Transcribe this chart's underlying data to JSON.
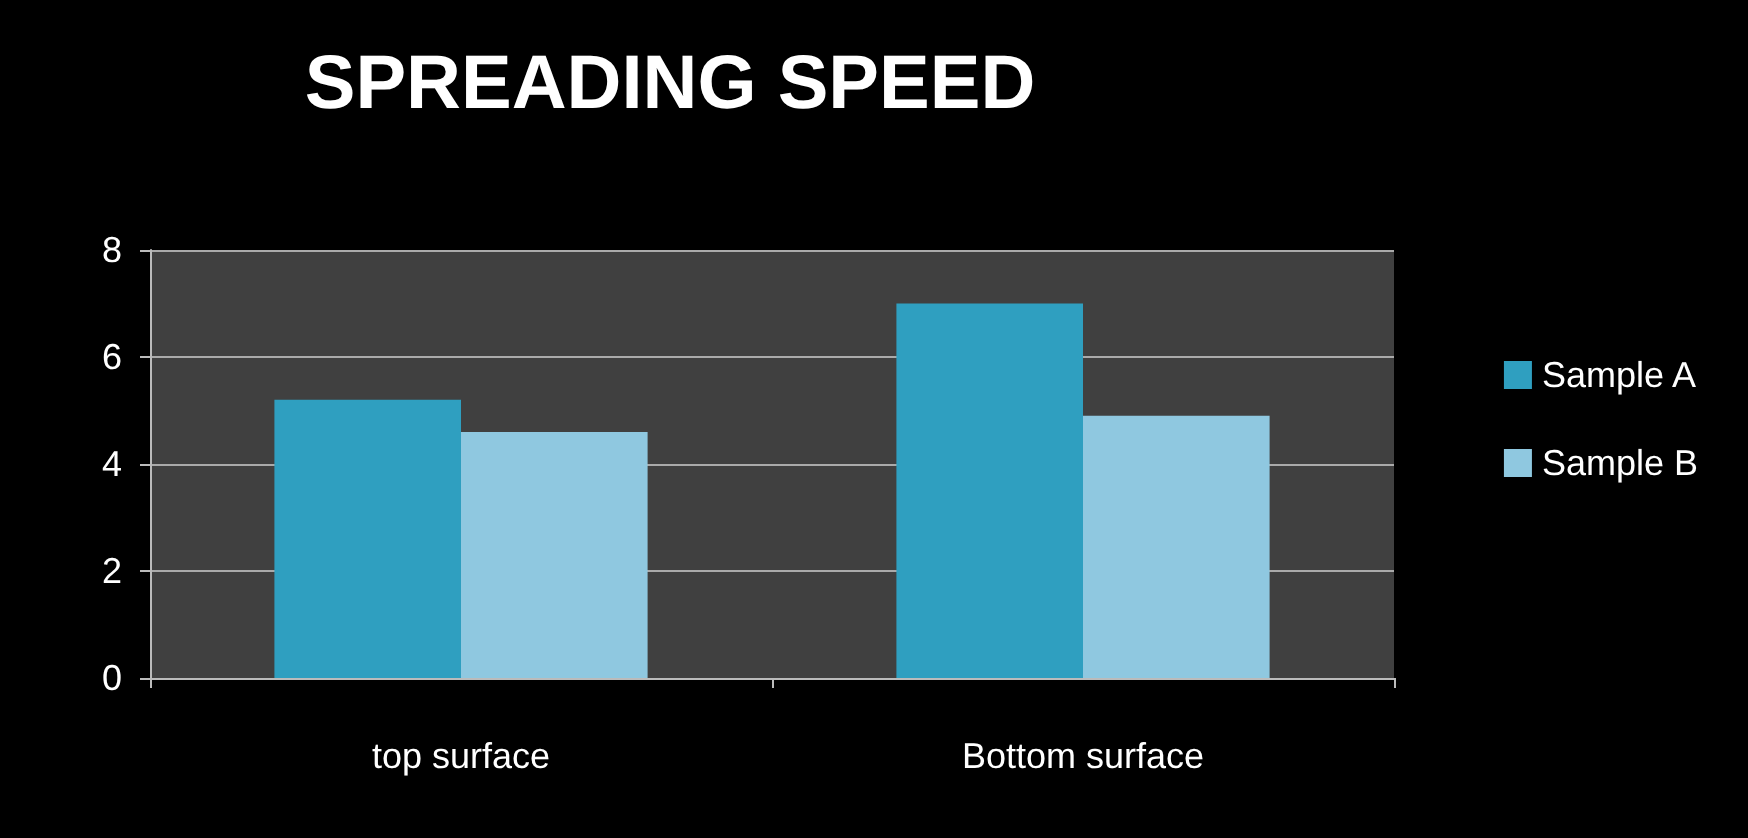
{
  "chart_data": {
    "type": "bar",
    "title": "SPREADING SPEED",
    "categories": [
      "top surface",
      "Bottom surface"
    ],
    "series": [
      {
        "name": "Sample A",
        "color": "#2f9fc0",
        "values": [
          5.2,
          7
        ]
      },
      {
        "name": "Sample B",
        "color": "#8fc8e0",
        "values": [
          4.6,
          4.9
        ]
      }
    ],
    "ylim": [
      0,
      8
    ],
    "yticks": [
      0,
      2,
      4,
      6,
      8
    ],
    "grid": "y",
    "legend": "right"
  }
}
